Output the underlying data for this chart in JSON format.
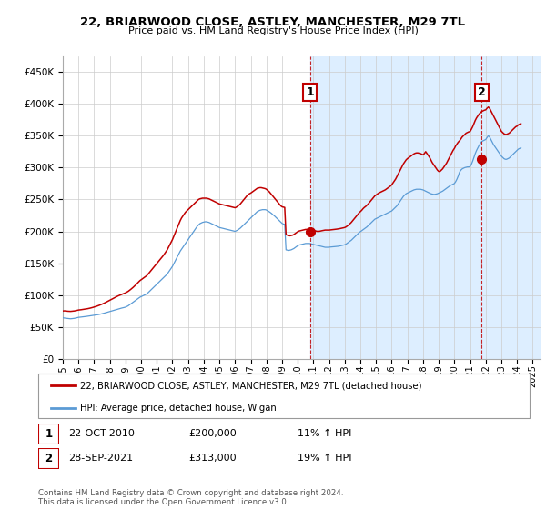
{
  "title": "22, BRIARWOOD CLOSE, ASTLEY, MANCHESTER, M29 7TL",
  "subtitle": "Price paid vs. HM Land Registry's House Price Index (HPI)",
  "legend_line1": "22, BRIARWOOD CLOSE, ASTLEY, MANCHESTER, M29 7TL (detached house)",
  "legend_line2": "HPI: Average price, detached house, Wigan",
  "footnote": "Contains HM Land Registry data © Crown copyright and database right 2024.\nThis data is licensed under the Open Government Licence v3.0.",
  "annotation1_date": "22-OCT-2010",
  "annotation1_price": "£200,000",
  "annotation1_hpi": "11% ↑ HPI",
  "annotation2_date": "28-SEP-2021",
  "annotation2_price": "£313,000",
  "annotation2_hpi": "19% ↑ HPI",
  "hpi_color": "#5b9bd5",
  "price_color": "#c00000",
  "annotation_color": "#c00000",
  "fill_color": "#ddeeff",
  "ylim": [
    0,
    475000
  ],
  "yticks": [
    0,
    50000,
    100000,
    150000,
    200000,
    250000,
    300000,
    350000,
    400000,
    450000
  ],
  "xlim": [
    1995.0,
    2025.5
  ],
  "sale1_year": 2010.8,
  "sale1_value": 200000,
  "sale2_year": 2021.73,
  "sale2_value": 313000,
  "hpi_years": [
    1995.0,
    1995.083,
    1995.167,
    1995.25,
    1995.333,
    1995.417,
    1995.5,
    1995.583,
    1995.667,
    1995.75,
    1995.833,
    1995.917,
    1996.0,
    1996.083,
    1996.167,
    1996.25,
    1996.333,
    1996.417,
    1996.5,
    1996.583,
    1996.667,
    1996.75,
    1996.833,
    1996.917,
    1997.0,
    1997.083,
    1997.167,
    1997.25,
    1997.333,
    1997.417,
    1997.5,
    1997.583,
    1997.667,
    1997.75,
    1997.833,
    1997.917,
    1998.0,
    1998.083,
    1998.167,
    1998.25,
    1998.333,
    1998.417,
    1998.5,
    1998.583,
    1998.667,
    1998.75,
    1998.833,
    1998.917,
    1999.0,
    1999.083,
    1999.167,
    1999.25,
    1999.333,
    1999.417,
    1999.5,
    1999.583,
    1999.667,
    1999.75,
    1999.833,
    1999.917,
    2000.0,
    2000.083,
    2000.167,
    2000.25,
    2000.333,
    2000.417,
    2000.5,
    2000.583,
    2000.667,
    2000.75,
    2000.833,
    2000.917,
    2001.0,
    2001.083,
    2001.167,
    2001.25,
    2001.333,
    2001.417,
    2001.5,
    2001.583,
    2001.667,
    2001.75,
    2001.833,
    2001.917,
    2002.0,
    2002.083,
    2002.167,
    2002.25,
    2002.333,
    2002.417,
    2002.5,
    2002.583,
    2002.667,
    2002.75,
    2002.833,
    2002.917,
    2003.0,
    2003.083,
    2003.167,
    2003.25,
    2003.333,
    2003.417,
    2003.5,
    2003.583,
    2003.667,
    2003.75,
    2003.833,
    2003.917,
    2004.0,
    2004.083,
    2004.167,
    2004.25,
    2004.333,
    2004.417,
    2004.5,
    2004.583,
    2004.667,
    2004.75,
    2004.833,
    2004.917,
    2005.0,
    2005.083,
    2005.167,
    2005.25,
    2005.333,
    2005.417,
    2005.5,
    2005.583,
    2005.667,
    2005.75,
    2005.833,
    2005.917,
    2006.0,
    2006.083,
    2006.167,
    2006.25,
    2006.333,
    2006.417,
    2006.5,
    2006.583,
    2006.667,
    2006.75,
    2006.833,
    2006.917,
    2007.0,
    2007.083,
    2007.167,
    2007.25,
    2007.333,
    2007.417,
    2007.5,
    2007.583,
    2007.667,
    2007.75,
    2007.833,
    2007.917,
    2008.0,
    2008.083,
    2008.167,
    2008.25,
    2008.333,
    2008.417,
    2008.5,
    2008.583,
    2008.667,
    2008.75,
    2008.833,
    2008.917,
    2009.0,
    2009.083,
    2009.167,
    2009.25,
    2009.333,
    2009.417,
    2009.5,
    2009.583,
    2009.667,
    2009.75,
    2009.833,
    2009.917,
    2010.0,
    2010.083,
    2010.167,
    2010.25,
    2010.333,
    2010.417,
    2010.5,
    2010.583,
    2010.667,
    2010.75,
    2010.833,
    2010.917,
    2011.0,
    2011.083,
    2011.167,
    2011.25,
    2011.333,
    2011.417,
    2011.5,
    2011.583,
    2011.667,
    2011.75,
    2011.833,
    2011.917,
    2012.0,
    2012.083,
    2012.167,
    2012.25,
    2012.333,
    2012.417,
    2012.5,
    2012.583,
    2012.667,
    2012.75,
    2012.833,
    2012.917,
    2013.0,
    2013.083,
    2013.167,
    2013.25,
    2013.333,
    2013.417,
    2013.5,
    2013.583,
    2013.667,
    2013.75,
    2013.833,
    2013.917,
    2014.0,
    2014.083,
    2014.167,
    2014.25,
    2014.333,
    2014.417,
    2014.5,
    2014.583,
    2014.667,
    2014.75,
    2014.833,
    2014.917,
    2015.0,
    2015.083,
    2015.167,
    2015.25,
    2015.333,
    2015.417,
    2015.5,
    2015.583,
    2015.667,
    2015.75,
    2015.833,
    2015.917,
    2016.0,
    2016.083,
    2016.167,
    2016.25,
    2016.333,
    2016.417,
    2016.5,
    2016.583,
    2016.667,
    2016.75,
    2016.833,
    2016.917,
    2017.0,
    2017.083,
    2017.167,
    2017.25,
    2017.333,
    2017.417,
    2017.5,
    2017.583,
    2017.667,
    2017.75,
    2017.833,
    2017.917,
    2018.0,
    2018.083,
    2018.167,
    2018.25,
    2018.333,
    2018.417,
    2018.5,
    2018.583,
    2018.667,
    2018.75,
    2018.833,
    2018.917,
    2019.0,
    2019.083,
    2019.167,
    2019.25,
    2019.333,
    2019.417,
    2019.5,
    2019.583,
    2019.667,
    2019.75,
    2019.833,
    2019.917,
    2020.0,
    2020.083,
    2020.167,
    2020.25,
    2020.333,
    2020.417,
    2020.5,
    2020.583,
    2020.667,
    2020.75,
    2020.833,
    2020.917,
    2021.0,
    2021.083,
    2021.167,
    2021.25,
    2021.333,
    2021.417,
    2021.5,
    2021.583,
    2021.667,
    2021.75,
    2021.833,
    2021.917,
    2022.0,
    2022.083,
    2022.167,
    2022.25,
    2022.333,
    2022.417,
    2022.5,
    2022.583,
    2022.667,
    2022.75,
    2022.833,
    2022.917,
    2023.0,
    2023.083,
    2023.167,
    2023.25,
    2023.333,
    2023.417,
    2023.5,
    2023.583,
    2023.667,
    2023.75,
    2023.833,
    2023.917,
    2024.0,
    2024.083,
    2024.167,
    2024.25
  ],
  "hpi_values": [
    64500,
    64000,
    63800,
    63500,
    63200,
    63000,
    62800,
    63000,
    63200,
    63500,
    64000,
    64500,
    65000,
    65200,
    65500,
    65800,
    66000,
    66200,
    66500,
    66800,
    67000,
    67300,
    67600,
    67900,
    68200,
    68500,
    68900,
    69300,
    69700,
    70200,
    70700,
    71200,
    71800,
    72400,
    73000,
    73600,
    74200,
    74800,
    75400,
    76000,
    76600,
    77200,
    77800,
    78400,
    79000,
    79500,
    80000,
    80500,
    81000,
    82000,
    83000,
    84500,
    86000,
    87500,
    89000,
    90500,
    92000,
    93500,
    95000,
    96500,
    97500,
    98500,
    99500,
    100500,
    101500,
    103000,
    105000,
    107000,
    109000,
    111000,
    113000,
    115000,
    117000,
    119000,
    121000,
    123000,
    125000,
    127000,
    129000,
    131000,
    133000,
    136000,
    139000,
    142000,
    145000,
    149000,
    153000,
    157000,
    161000,
    165000,
    169000,
    172000,
    175000,
    178000,
    181000,
    184000,
    187000,
    190000,
    193000,
    196000,
    199000,
    202000,
    205000,
    208000,
    210000,
    212000,
    213000,
    214000,
    214500,
    215000,
    215000,
    214500,
    214000,
    213000,
    212000,
    211000,
    210000,
    209000,
    208000,
    207000,
    206000,
    205500,
    205000,
    204500,
    204000,
    203500,
    203000,
    202500,
    202000,
    201500,
    201000,
    200500,
    200000,
    201000,
    202000,
    203500,
    205000,
    207000,
    209000,
    211000,
    213000,
    215000,
    217000,
    219000,
    221000,
    223000,
    225000,
    227000,
    229000,
    231000,
    232000,
    233000,
    233500,
    234000,
    234000,
    234000,
    233500,
    232000,
    231000,
    229500,
    228000,
    226000,
    224500,
    222500,
    220500,
    218500,
    216500,
    214500,
    212500,
    211500,
    211000,
    171000,
    170500,
    170000,
    170500,
    171000,
    172000,
    173000,
    174500,
    176000,
    177500,
    178500,
    179000,
    179500,
    180000,
    180500,
    181000,
    181000,
    181000,
    181000,
    180500,
    180000,
    179500,
    179000,
    178500,
    178000,
    177500,
    177000,
    176500,
    176000,
    175500,
    175000,
    175000,
    175000,
    175200,
    175400,
    175600,
    175800,
    176000,
    176200,
    176400,
    176600,
    177000,
    177500,
    178000,
    178500,
    179000,
    180000,
    181500,
    183000,
    184500,
    186000,
    188000,
    190000,
    192000,
    194000,
    196000,
    198000,
    199500,
    201000,
    202500,
    204000,
    205500,
    207000,
    209000,
    211000,
    213000,
    215000,
    217000,
    219000,
    220000,
    221000,
    222000,
    223000,
    224000,
    225000,
    226000,
    227000,
    228000,
    229000,
    230000,
    231000,
    232000,
    234000,
    236000,
    238000,
    240000,
    243000,
    246000,
    249000,
    252000,
    255000,
    257000,
    259000,
    260000,
    261000,
    262000,
    263000,
    264000,
    265000,
    265500,
    266000,
    266000,
    266000,
    266000,
    265500,
    265000,
    264000,
    263000,
    262000,
    261000,
    260000,
    259000,
    258500,
    258000,
    258000,
    258500,
    259000,
    260000,
    261000,
    262000,
    263000,
    264500,
    266000,
    267500,
    269000,
    270500,
    272000,
    273000,
    274000,
    275000,
    278000,
    282000,
    287000,
    293000,
    296000,
    298000,
    299000,
    300000,
    300500,
    301000,
    301000,
    301500,
    305000,
    310000,
    316000,
    322000,
    327000,
    331000,
    335000,
    338000,
    341000,
    342000,
    343000,
    344000,
    347000,
    350000,
    348000,
    344000,
    340000,
    336000,
    333000,
    330000,
    327000,
    324000,
    321000,
    318000,
    316000,
    314000,
    313000,
    313000,
    314000,
    315000,
    317000,
    319000,
    321000,
    323000,
    325000,
    327000,
    329000,
    330000,
    331000
  ],
  "red_years": [
    1995.0,
    1995.083,
    1995.167,
    1995.25,
    1995.333,
    1995.417,
    1995.5,
    1995.583,
    1995.667,
    1995.75,
    1995.833,
    1995.917,
    1996.0,
    1996.083,
    1996.167,
    1996.25,
    1996.333,
    1996.417,
    1996.5,
    1996.583,
    1996.667,
    1996.75,
    1996.833,
    1996.917,
    1997.0,
    1997.083,
    1997.167,
    1997.25,
    1997.333,
    1997.417,
    1997.5,
    1997.583,
    1997.667,
    1997.75,
    1997.833,
    1997.917,
    1998.0,
    1998.083,
    1998.167,
    1998.25,
    1998.333,
    1998.417,
    1998.5,
    1998.583,
    1998.667,
    1998.75,
    1998.833,
    1998.917,
    1999.0,
    1999.083,
    1999.167,
    1999.25,
    1999.333,
    1999.417,
    1999.5,
    1999.583,
    1999.667,
    1999.75,
    1999.833,
    1999.917,
    2000.0,
    2000.083,
    2000.167,
    2000.25,
    2000.333,
    2000.417,
    2000.5,
    2000.583,
    2000.667,
    2000.75,
    2000.833,
    2000.917,
    2001.0,
    2001.083,
    2001.167,
    2001.25,
    2001.333,
    2001.417,
    2001.5,
    2001.583,
    2001.667,
    2001.75,
    2001.833,
    2001.917,
    2002.0,
    2002.083,
    2002.167,
    2002.25,
    2002.333,
    2002.417,
    2002.5,
    2002.583,
    2002.667,
    2002.75,
    2002.833,
    2002.917,
    2003.0,
    2003.083,
    2003.167,
    2003.25,
    2003.333,
    2003.417,
    2003.5,
    2003.583,
    2003.667,
    2003.75,
    2003.833,
    2003.917,
    2004.0,
    2004.083,
    2004.167,
    2004.25,
    2004.333,
    2004.417,
    2004.5,
    2004.583,
    2004.667,
    2004.75,
    2004.833,
    2004.917,
    2005.0,
    2005.083,
    2005.167,
    2005.25,
    2005.333,
    2005.417,
    2005.5,
    2005.583,
    2005.667,
    2005.75,
    2005.833,
    2005.917,
    2006.0,
    2006.083,
    2006.167,
    2006.25,
    2006.333,
    2006.417,
    2006.5,
    2006.583,
    2006.667,
    2006.75,
    2006.833,
    2006.917,
    2007.0,
    2007.083,
    2007.167,
    2007.25,
    2007.333,
    2007.417,
    2007.5,
    2007.583,
    2007.667,
    2007.75,
    2007.833,
    2007.917,
    2008.0,
    2008.083,
    2008.167,
    2008.25,
    2008.333,
    2008.417,
    2008.5,
    2008.583,
    2008.667,
    2008.75,
    2008.833,
    2008.917,
    2009.0,
    2009.083,
    2009.167,
    2009.25,
    2009.333,
    2009.417,
    2009.5,
    2009.583,
    2009.667,
    2009.75,
    2009.833,
    2009.917,
    2010.0,
    2010.083,
    2010.167,
    2010.25,
    2010.333,
    2010.417,
    2010.5,
    2010.583,
    2010.667,
    2010.75,
    2010.833,
    2010.917,
    2011.0,
    2011.083,
    2011.167,
    2011.25,
    2011.333,
    2011.417,
    2011.5,
    2011.583,
    2011.667,
    2011.75,
    2011.833,
    2011.917,
    2012.0,
    2012.083,
    2012.167,
    2012.25,
    2012.333,
    2012.417,
    2012.5,
    2012.583,
    2012.667,
    2012.75,
    2012.833,
    2012.917,
    2013.0,
    2013.083,
    2013.167,
    2013.25,
    2013.333,
    2013.417,
    2013.5,
    2013.583,
    2013.667,
    2013.75,
    2013.833,
    2013.917,
    2014.0,
    2014.083,
    2014.167,
    2014.25,
    2014.333,
    2014.417,
    2014.5,
    2014.583,
    2014.667,
    2014.75,
    2014.833,
    2014.917,
    2015.0,
    2015.083,
    2015.167,
    2015.25,
    2015.333,
    2015.417,
    2015.5,
    2015.583,
    2015.667,
    2015.75,
    2015.833,
    2015.917,
    2016.0,
    2016.083,
    2016.167,
    2016.25,
    2016.333,
    2016.417,
    2016.5,
    2016.583,
    2016.667,
    2016.75,
    2016.833,
    2016.917,
    2017.0,
    2017.083,
    2017.167,
    2017.25,
    2017.333,
    2017.417,
    2017.5,
    2017.583,
    2017.667,
    2017.75,
    2017.833,
    2017.917,
    2018.0,
    2018.083,
    2018.167,
    2018.25,
    2018.333,
    2018.417,
    2018.5,
    2018.583,
    2018.667,
    2018.75,
    2018.833,
    2018.917,
    2019.0,
    2019.083,
    2019.167,
    2019.25,
    2019.333,
    2019.417,
    2019.5,
    2019.583,
    2019.667,
    2019.75,
    2019.833,
    2019.917,
    2020.0,
    2020.083,
    2020.167,
    2020.25,
    2020.333,
    2020.417,
    2020.5,
    2020.583,
    2020.667,
    2020.75,
    2020.833,
    2020.917,
    2021.0,
    2021.083,
    2021.167,
    2021.25,
    2021.333,
    2021.417,
    2021.5,
    2021.583,
    2021.667,
    2021.75,
    2021.833,
    2021.917,
    2022.0,
    2022.083,
    2022.167,
    2022.25,
    2022.333,
    2022.417,
    2022.5,
    2022.583,
    2022.667,
    2022.75,
    2022.833,
    2022.917,
    2023.0,
    2023.083,
    2023.167,
    2023.25,
    2023.333,
    2023.417,
    2023.5,
    2023.583,
    2023.667,
    2023.75,
    2023.833,
    2023.917,
    2024.0,
    2024.083,
    2024.167,
    2024.25
  ],
  "red_values": [
    75000,
    75200,
    75100,
    74800,
    74600,
    74500,
    74400,
    74600,
    74800,
    75100,
    75500,
    76000,
    76500,
    76700,
    77000,
    77300,
    77600,
    77900,
    78200,
    78600,
    79000,
    79500,
    80000,
    80600,
    81200,
    81800,
    82500,
    83200,
    84000,
    84800,
    85700,
    86600,
    87600,
    88600,
    89700,
    90800,
    91900,
    93000,
    94100,
    95200,
    96300,
    97300,
    98300,
    99200,
    100100,
    101000,
    101800,
    102600,
    103400,
    104500,
    105700,
    107200,
    108800,
    110500,
    112300,
    114200,
    116200,
    118300,
    120400,
    122500,
    124000,
    125500,
    127000,
    128500,
    130000,
    132000,
    134500,
    137000,
    139500,
    142000,
    144500,
    147000,
    149500,
    152000,
    154500,
    157000,
    159500,
    162000,
    165000,
    168000,
    171000,
    175000,
    179000,
    183000,
    187000,
    192000,
    197000,
    202000,
    207000,
    212000,
    217000,
    221000,
    224000,
    227000,
    230000,
    232000,
    234000,
    236000,
    238000,
    240000,
    242000,
    244000,
    246000,
    248000,
    250000,
    251000,
    251500,
    252000,
    252000,
    252000,
    252000,
    251500,
    251000,
    250000,
    249000,
    248000,
    247000,
    246000,
    245000,
    244000,
    243000,
    242500,
    242000,
    241500,
    241000,
    240500,
    240000,
    239500,
    239000,
    238500,
    238000,
    237500,
    237000,
    238000,
    239500,
    241000,
    243000,
    245500,
    248000,
    250500,
    253000,
    255500,
    257500,
    259000,
    260000,
    261500,
    263000,
    264500,
    266000,
    267500,
    268000,
    268500,
    268500,
    268000,
    267500,
    267000,
    266000,
    264000,
    262500,
    260000,
    257500,
    255000,
    252500,
    250000,
    247500,
    245000,
    242500,
    240000,
    238500,
    238000,
    237500,
    195000,
    194000,
    193500,
    193000,
    193500,
    194000,
    195000,
    196500,
    198000,
    199500,
    200500,
    201000,
    201500,
    202000,
    202500,
    203000,
    203000,
    203000,
    203000,
    202500,
    202000,
    201500,
    201000,
    200500,
    200000,
    200000,
    200300,
    200800,
    201200,
    201600,
    202000,
    202000,
    202000,
    202000,
    202200,
    202500,
    202800,
    203000,
    203200,
    203500,
    203800,
    204200,
    204600,
    205000,
    205500,
    206000,
    207000,
    208500,
    210000,
    212000,
    214000,
    216500,
    219000,
    221500,
    224000,
    226500,
    229000,
    231000,
    233000,
    235500,
    237500,
    239000,
    241000,
    243000,
    245500,
    248000,
    250500,
    253000,
    255500,
    257000,
    258500,
    260000,
    261000,
    262000,
    263000,
    264000,
    265000,
    266500,
    268000,
    269500,
    271000,
    273000,
    276000,
    279000,
    282000,
    286000,
    290000,
    294000,
    298000,
    302000,
    306000,
    309000,
    312000,
    314000,
    315500,
    317000,
    318500,
    320000,
    321500,
    322500,
    323000,
    323000,
    322500,
    322000,
    321000,
    320000,
    322000,
    325000,
    322000,
    319000,
    316000,
    312000,
    308000,
    305000,
    302000,
    299000,
    296000,
    294000,
    294000,
    296000,
    298000,
    301000,
    304000,
    307000,
    311000,
    315000,
    319000,
    323000,
    327000,
    330000,
    334000,
    337000,
    340000,
    342000,
    345000,
    348000,
    350000,
    352000,
    354000,
    355000,
    356000,
    356500,
    360000,
    364000,
    369000,
    374000,
    378000,
    381000,
    384000,
    386000,
    388000,
    389000,
    390000,
    390500,
    393000,
    395000,
    393000,
    389000,
    385000,
    381000,
    377000,
    373000,
    369000,
    365000,
    361000,
    357000,
    355000,
    353000,
    352000,
    352000,
    353000,
    354000,
    356000,
    358000,
    360000,
    362000,
    364000,
    365000,
    367000,
    368000,
    369000
  ]
}
